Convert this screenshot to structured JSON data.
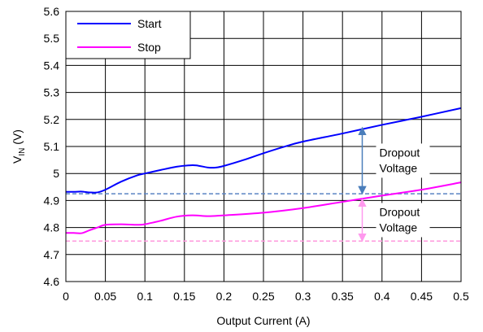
{
  "chart_data": {
    "type": "line",
    "xlabel": "Output Current (A)",
    "ylabel": {
      "main": "V",
      "sub": "IN",
      "rest": " (V)"
    },
    "xlim": [
      0,
      0.5
    ],
    "ylim": [
      4.6,
      5.6
    ],
    "x_ticks": [
      "0",
      "0.05",
      "0.1",
      "0.15",
      "0.2",
      "0.25",
      "0.3",
      "0.35",
      "0.4",
      "0.45",
      "0.5"
    ],
    "y_ticks": [
      "4.6",
      "4.7",
      "4.8",
      "4.9",
      "5",
      "5.1",
      "5.2",
      "5.3",
      "5.4",
      "5.5",
      "5.6"
    ],
    "grid": true,
    "legend_position": "top-left",
    "series": [
      {
        "name": "Start",
        "color": "#0000ff",
        "points": [
          [
            0,
            4.932
          ],
          [
            0.01,
            4.932
          ],
          [
            0.02,
            4.933
          ],
          [
            0.03,
            4.93
          ],
          [
            0.04,
            4.93
          ],
          [
            0.05,
            4.94
          ],
          [
            0.07,
            4.97
          ],
          [
            0.09,
            4.993
          ],
          [
            0.1,
            5.0
          ],
          [
            0.12,
            5.013
          ],
          [
            0.14,
            5.025
          ],
          [
            0.155,
            5.03
          ],
          [
            0.165,
            5.03
          ],
          [
            0.18,
            5.022
          ],
          [
            0.19,
            5.022
          ],
          [
            0.2,
            5.028
          ],
          [
            0.225,
            5.05
          ],
          [
            0.25,
            5.075
          ],
          [
            0.275,
            5.098
          ],
          [
            0.3,
            5.118
          ],
          [
            0.35,
            5.148
          ],
          [
            0.4,
            5.18
          ],
          [
            0.45,
            5.21
          ],
          [
            0.5,
            5.242
          ]
        ]
      },
      {
        "name": "Stop",
        "color": "#ff00ff",
        "points": [
          [
            0,
            4.78
          ],
          [
            0.01,
            4.78
          ],
          [
            0.02,
            4.779
          ],
          [
            0.03,
            4.79
          ],
          [
            0.04,
            4.8
          ],
          [
            0.05,
            4.81
          ],
          [
            0.07,
            4.812
          ],
          [
            0.09,
            4.81
          ],
          [
            0.1,
            4.812
          ],
          [
            0.12,
            4.825
          ],
          [
            0.14,
            4.84
          ],
          [
            0.16,
            4.845
          ],
          [
            0.18,
            4.842
          ],
          [
            0.2,
            4.845
          ],
          [
            0.25,
            4.855
          ],
          [
            0.3,
            4.872
          ],
          [
            0.35,
            4.895
          ],
          [
            0.4,
            4.918
          ],
          [
            0.45,
            4.94
          ],
          [
            0.5,
            4.967
          ]
        ]
      }
    ],
    "reference_lines": [
      {
        "y": 4.925,
        "color": "#5b84c4",
        "style": "dashed"
      },
      {
        "y": 4.75,
        "color": "#ff99dd",
        "style": "dashed"
      }
    ],
    "annotations": [
      {
        "lines": [
          "Dropout",
          "Voltage"
        ],
        "x": 0.375,
        "y_from": 4.925,
        "y_to": 5.17,
        "arrow_color": "#4a7ebb"
      },
      {
        "lines": [
          "Dropout",
          "Voltage"
        ],
        "x": 0.375,
        "y_from": 4.75,
        "y_to": 4.905,
        "arrow_color": "#ff99ee"
      }
    ]
  }
}
